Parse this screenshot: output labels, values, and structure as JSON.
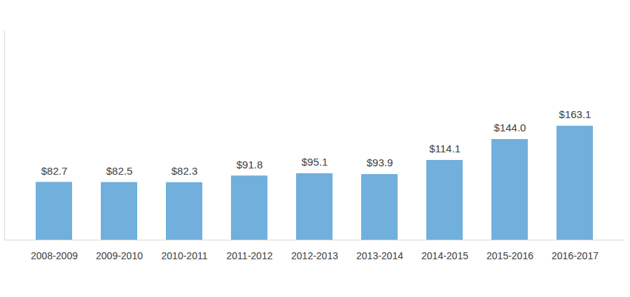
{
  "chart_data": {
    "type": "bar",
    "categories": [
      "2008-2009",
      "2009-2010",
      "2010-2011",
      "2011-2012",
      "2012-2013",
      "2013-2014",
      "2014-2015",
      "2015-2016",
      "2016-2017"
    ],
    "values": [
      82.7,
      82.5,
      82.3,
      91.8,
      95.1,
      93.9,
      114.1,
      144.0,
      163.1
    ],
    "value_labels": [
      "$82.7",
      "$82.5",
      "$82.3",
      "$91.8",
      "$95.1",
      "$93.9",
      "$114.1",
      "$144.0",
      "$163.1"
    ],
    "color": "#71afdc",
    "ylim": [
      0,
      300
    ],
    "yticks": [],
    "grid": false,
    "data_labels": true,
    "tick_labels": "x"
  }
}
